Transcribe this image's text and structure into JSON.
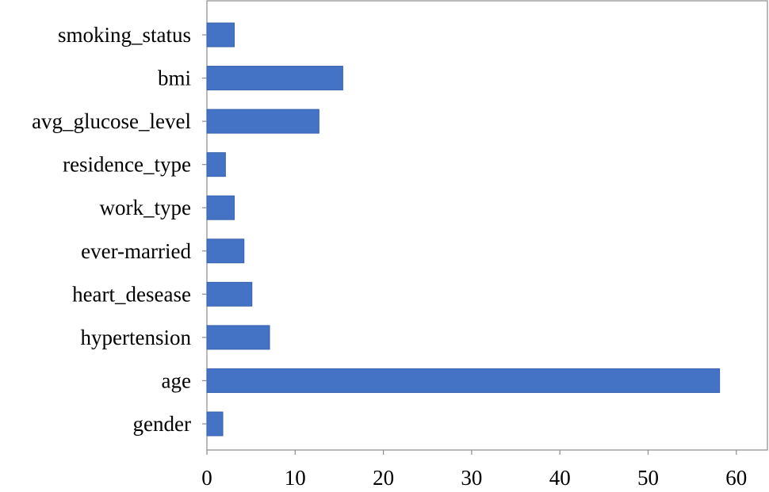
{
  "chart_data": {
    "type": "bar",
    "orientation": "horizontal",
    "categories": [
      "gender",
      "age",
      "hypertension",
      "heart_desease",
      "ever-married",
      "work_type",
      "residence_type",
      "avg_glucose_level",
      "bmi",
      "smoking_status"
    ],
    "values": [
      1.8,
      58.1,
      7.1,
      5.1,
      4.2,
      3.1,
      2.1,
      12.7,
      15.4,
      3.1
    ],
    "xlim": [
      0,
      61
    ],
    "xticks": [
      0,
      10,
      20,
      30,
      40,
      50,
      60
    ],
    "grid": false,
    "title": "",
    "xlabel": "",
    "ylabel": "",
    "colors": {
      "bar": "#4472C4",
      "axis": "#8c8c8c"
    }
  }
}
